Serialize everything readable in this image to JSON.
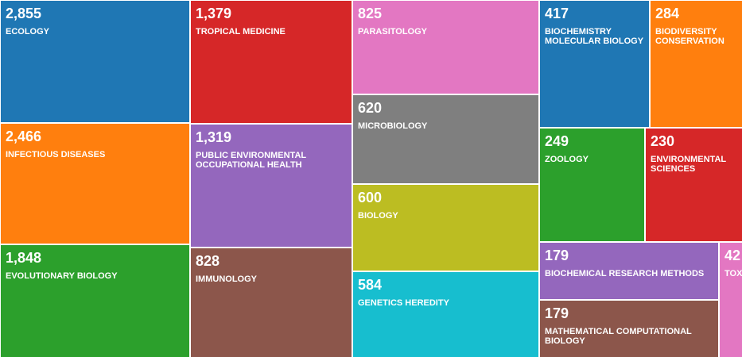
{
  "chart_data": {
    "type": "treemap",
    "title": "",
    "items": [
      {
        "value_label": "2,855",
        "value": 2855,
        "label": "ECOLOGY",
        "color": "#1f77b4"
      },
      {
        "value_label": "2,466",
        "value": 2466,
        "label": "INFECTIOUS DISEASES",
        "color": "#ff7f0e"
      },
      {
        "value_label": "1,848",
        "value": 1848,
        "label": "EVOLUTIONARY BIOLOGY",
        "color": "#2ca02c"
      },
      {
        "value_label": "1,379",
        "value": 1379,
        "label": "TROPICAL MEDICINE",
        "color": "#d62728"
      },
      {
        "value_label": "1,319",
        "value": 1319,
        "label": "PUBLIC ENVIRONMENTAL OCCUPATIONAL HEALTH",
        "color": "#9467bd"
      },
      {
        "value_label": "828",
        "value": 828,
        "label": "IMMUNOLOGY",
        "color": "#8c564b"
      },
      {
        "value_label": "825",
        "value": 825,
        "label": "PARASITOLOGY",
        "color": "#e377c2"
      },
      {
        "value_label": "620",
        "value": 620,
        "label": "MICROBIOLOGY",
        "color": "#7f7f7f"
      },
      {
        "value_label": "600",
        "value": 600,
        "label": "BIOLOGY",
        "color": "#bcbd22"
      },
      {
        "value_label": "584",
        "value": 584,
        "label": "GENETICS HEREDITY",
        "color": "#17becf"
      },
      {
        "value_label": "417",
        "value": 417,
        "label": "BIOCHEMISTRY MOLECULAR BIOLOGY",
        "color": "#1f77b4"
      },
      {
        "value_label": "284",
        "value": 284,
        "label": "BIODIVERSITY CONSERVATION",
        "color": "#ff7f0e"
      },
      {
        "value_label": "249",
        "value": 249,
        "label": "ZOOLOGY",
        "color": "#2ca02c"
      },
      {
        "value_label": "230",
        "value": 230,
        "label": "ENVIRONMENTAL SCIENCES",
        "color": "#d62728"
      },
      {
        "value_label": "179",
        "value": 179,
        "label": "BIOCHEMICAL RESEARCH METHODS",
        "color": "#9467bd"
      },
      {
        "value_label": "179",
        "value": 179,
        "label": "MATHEMATICAL COMPUTATIONAL BIOLOGY",
        "color": "#8c564b"
      },
      {
        "value_label": "42",
        "value": 42,
        "label": "TOX",
        "color": "#e377c2"
      }
    ]
  }
}
